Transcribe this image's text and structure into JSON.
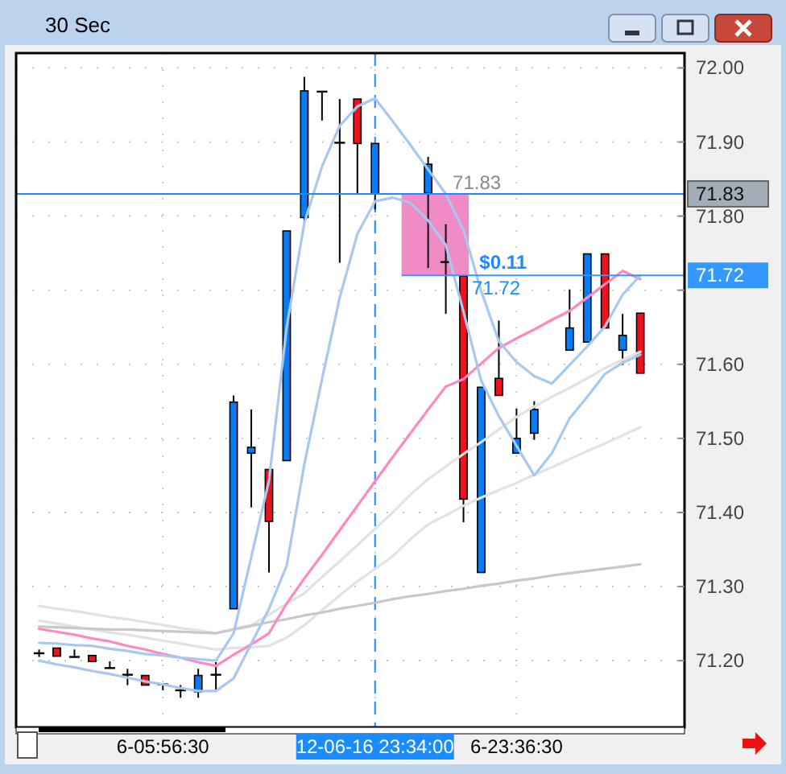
{
  "chart_data": {
    "type": "candlestick",
    "title": "30 Sec",
    "categories": [
      null,
      null,
      null,
      null,
      null,
      null,
      null,
      "6-05:56:30",
      null,
      null,
      null,
      null,
      null,
      null,
      null,
      null,
      null,
      null,
      null,
      "12-06-16 23:34:00",
      null,
      null,
      null,
      null,
      null,
      null,
      null,
      "6-23:36:30",
      null,
      null,
      null,
      null,
      null,
      null,
      null
    ],
    "ohlc": [
      [
        71.21,
        71.215,
        71.205,
        71.21
      ],
      [
        71.217,
        71.217,
        71.206,
        71.206
      ],
      [
        71.205,
        71.215,
        71.205,
        71.205
      ],
      [
        71.207,
        71.207,
        71.199,
        71.199
      ],
      [
        71.19,
        71.199,
        71.19,
        71.19
      ],
      [
        71.181,
        71.189,
        71.167,
        71.181
      ],
      [
        71.18,
        71.18,
        71.167,
        71.167
      ],
      [
        71.168,
        71.168,
        71.16,
        71.168
      ],
      [
        71.16,
        71.167,
        71.15,
        71.16
      ],
      [
        71.158,
        71.189,
        71.15,
        71.18
      ],
      [
        71.181,
        71.198,
        71.158,
        71.181
      ],
      [
        71.27,
        71.558,
        71.27,
        71.549
      ],
      [
        71.48,
        71.539,
        71.407,
        71.488
      ],
      [
        71.458,
        71.458,
        71.319,
        71.388
      ],
      [
        71.47,
        71.78,
        71.47,
        71.78
      ],
      [
        71.798,
        71.988,
        71.789,
        71.969
      ],
      [
        71.968,
        71.968,
        71.929,
        71.968
      ],
      [
        71.899,
        71.958,
        71.737,
        71.899
      ],
      [
        71.958,
        71.958,
        71.831,
        71.898
      ],
      [
        71.83,
        71.898,
        71.809,
        71.898
      ],
      null,
      null,
      [
        71.831,
        71.88,
        71.73,
        71.87
      ],
      [
        71.738,
        71.789,
        71.668,
        71.738
      ],
      [
        71.719,
        71.719,
        71.387,
        71.418
      ],
      [
        71.319,
        71.569,
        71.319,
        71.569
      ],
      [
        71.581,
        71.659,
        71.558,
        71.558
      ],
      [
        71.48,
        71.54,
        71.48,
        71.5
      ],
      [
        71.507,
        71.55,
        71.498,
        71.539
      ],
      null,
      [
        71.619,
        71.701,
        71.619,
        71.649
      ],
      [
        71.63,
        71.749,
        71.63,
        71.749
      ],
      [
        71.749,
        71.749,
        71.649,
        71.649
      ],
      [
        71.619,
        71.668,
        71.599,
        71.639
      ],
      [
        71.669,
        71.669,
        71.588,
        71.588
      ]
    ],
    "colors": [
      "#000000",
      "#e8141e",
      "#000000",
      "#e8141e",
      "#000000",
      "#000000",
      "#e8141e",
      "#000000",
      "#000000",
      "#0a7cf0",
      "#000000",
      "#0a7cf0",
      "#0a7cf0",
      "#e8141e",
      "#0a7cf0",
      "#0a7cf0",
      "#000000",
      "#000000",
      "#e8141e",
      "#0a7cf0",
      null,
      null,
      "#0a7cf0",
      "#000000",
      "#e8141e",
      "#0a7cf0",
      "#e8141e",
      "#0a7cf0",
      "#0a7cf0",
      null,
      "#0a7cf0",
      "#0a7cf0",
      "#e8141e",
      "#0a7cf0",
      "#e8141e"
    ],
    "series": [
      {
        "type": "line",
        "color": "#e2e2e2",
        "values": [
          71.274,
          71.27,
          71.267,
          71.263,
          71.259,
          71.256,
          71.252,
          71.248,
          71.244,
          71.241,
          71.237,
          71.243,
          71.248,
          71.262,
          71.277,
          71.291,
          71.313,
          71.334,
          71.356,
          71.378,
          71.4,
          71.424,
          71.445,
          71.462,
          71.479,
          71.495,
          71.512,
          71.529,
          71.543,
          71.556,
          71.568,
          71.581,
          71.595,
          71.606,
          71.617
        ]
      },
      {
        "type": "line",
        "color": "#e2e2e2",
        "values": [
          71.254,
          71.25,
          71.246,
          71.242,
          71.238,
          71.235,
          71.231,
          71.227,
          71.223,
          71.219,
          71.215,
          71.217,
          71.218,
          71.22,
          71.231,
          71.248,
          71.268,
          71.288,
          71.307,
          71.324,
          71.341,
          71.364,
          71.384,
          71.396,
          71.409,
          71.42,
          71.43,
          71.44,
          71.451,
          71.461,
          71.472,
          71.483,
          71.493,
          71.504,
          71.515
        ]
      },
      {
        "type": "line",
        "color": "#c8c8c8",
        "values": [
          71.246,
          71.245,
          71.244,
          71.243,
          71.242,
          71.242,
          71.241,
          71.24,
          71.239,
          71.238,
          71.237,
          71.242,
          71.247,
          71.252,
          71.256,
          71.261,
          71.265,
          71.27,
          71.274,
          71.278,
          71.283,
          71.287,
          71.29,
          71.294,
          71.297,
          71.301,
          71.304,
          71.308,
          71.311,
          71.315,
          71.318,
          71.321,
          71.324,
          71.327,
          71.33
        ]
      },
      {
        "type": "line",
        "color": "#ff88c0",
        "values": [
          71.243,
          71.239,
          71.235,
          71.23,
          71.226,
          71.22,
          71.215,
          71.209,
          71.204,
          71.198,
          71.193,
          71.208,
          71.222,
          71.237,
          71.277,
          71.311,
          71.343,
          71.376,
          71.409,
          71.442,
          71.475,
          71.507,
          71.539,
          71.57,
          71.58,
          71.601,
          71.622,
          71.635,
          71.647,
          71.66,
          71.672,
          71.69,
          71.708,
          71.726,
          71.715
        ]
      },
      {
        "type": "line",
        "color": "#a8c8f0",
        "values": [
          71.224,
          71.223,
          71.221,
          71.22,
          71.216,
          71.213,
          71.209,
          71.207,
          71.204,
          71.202,
          71.2,
          71.237,
          71.34,
          71.443,
          71.65,
          71.791,
          71.867,
          71.922,
          71.948,
          71.959,
          71.928,
          71.896,
          71.863,
          71.83,
          71.781,
          71.699,
          71.631,
          71.603,
          71.584,
          71.574,
          71.599,
          71.624,
          71.651,
          71.694,
          71.72
        ]
      },
      {
        "type": "line",
        "color": "#a8c8f0",
        "values": [
          71.2,
          71.195,
          71.191,
          71.186,
          71.182,
          71.177,
          71.172,
          71.168,
          71.163,
          71.159,
          71.159,
          71.176,
          71.223,
          71.27,
          71.328,
          71.465,
          71.58,
          71.69,
          71.776,
          71.82,
          71.825,
          71.818,
          71.794,
          71.761,
          71.671,
          71.578,
          71.53,
          71.49,
          71.45,
          71.48,
          71.527,
          71.556,
          71.587,
          71.602,
          71.613
        ]
      }
    ],
    "ylim": [
      71.11,
      72.02
    ],
    "yticks": [
      {
        "value": 71.2,
        "label": "71.20"
      },
      {
        "value": 71.3,
        "label": "71.30"
      },
      {
        "value": 71.4,
        "label": "71.40"
      },
      {
        "value": 71.5,
        "label": "71.50"
      },
      {
        "value": 71.6,
        "label": "71.60"
      },
      {
        "value": 71.7,
        "label": null
      },
      {
        "value": 71.8,
        "label": "71.80"
      },
      {
        "value": 71.9,
        "label": "71.90"
      },
      {
        "value": 72,
        "label": "72.00"
      }
    ],
    "grid": true,
    "ref_lines": [
      {
        "axis": "y",
        "value": 71.83,
        "label": "71.83",
        "color": "#1a8cff",
        "line_style": "solid"
      },
      {
        "axis": "y",
        "value": 71.72,
        "label": "71.72",
        "color": "#3399ff",
        "line_style": "solid"
      },
      {
        "axis": "x",
        "value": "12-06-16 23:34:00",
        "color": "#1a8cff",
        "line_style": "dashed"
      }
    ],
    "annotations": [
      "71.83",
      "$0.11",
      "71.72"
    ]
  }
}
